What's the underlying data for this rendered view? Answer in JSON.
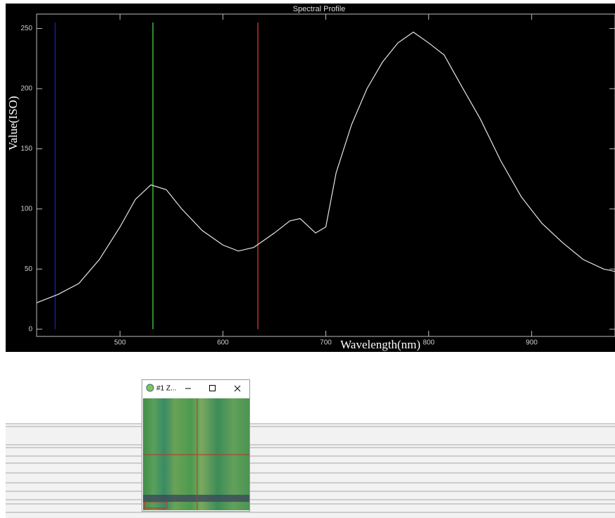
{
  "chart_data": {
    "type": "line",
    "title": "Spectral Profile",
    "x_label": "Wavelength(nm)",
    "y_label": "Value(ISO)",
    "x": [
      419,
      440,
      460,
      480,
      500,
      515,
      530,
      545,
      560,
      580,
      600,
      615,
      630,
      650,
      665,
      675,
      690,
      700,
      710,
      725,
      740,
      755,
      770,
      785,
      800,
      815,
      830,
      850,
      870,
      890,
      910,
      930,
      950,
      970,
      981
    ],
    "series": [
      {
        "color": "#e6e6e6",
        "values": [
          22,
          29,
          38,
          58,
          85,
          108,
          120,
          116,
          100,
          82,
          70,
          65,
          68,
          80,
          90,
          92,
          80,
          85,
          130,
          170,
          200,
          222,
          238,
          247,
          238,
          228,
          205,
          175,
          140,
          110,
          88,
          72,
          58,
          50,
          48
        ]
      }
    ],
    "markers": [
      {
        "x": 437,
        "color": "#1a1aa0"
      },
      {
        "x": 532,
        "color": "#3cb83c"
      },
      {
        "x": 634,
        "color": "#c0302a"
      }
    ],
    "xlim": [
      419,
      981
    ],
    "ylim": [
      -6,
      255
    ],
    "xticks": [
      500,
      600,
      700,
      800,
      900
    ],
    "yticks": [
      0,
      50,
      100,
      150,
      200,
      250
    ]
  },
  "zoom_window": {
    "title": "#1 Z..."
  }
}
